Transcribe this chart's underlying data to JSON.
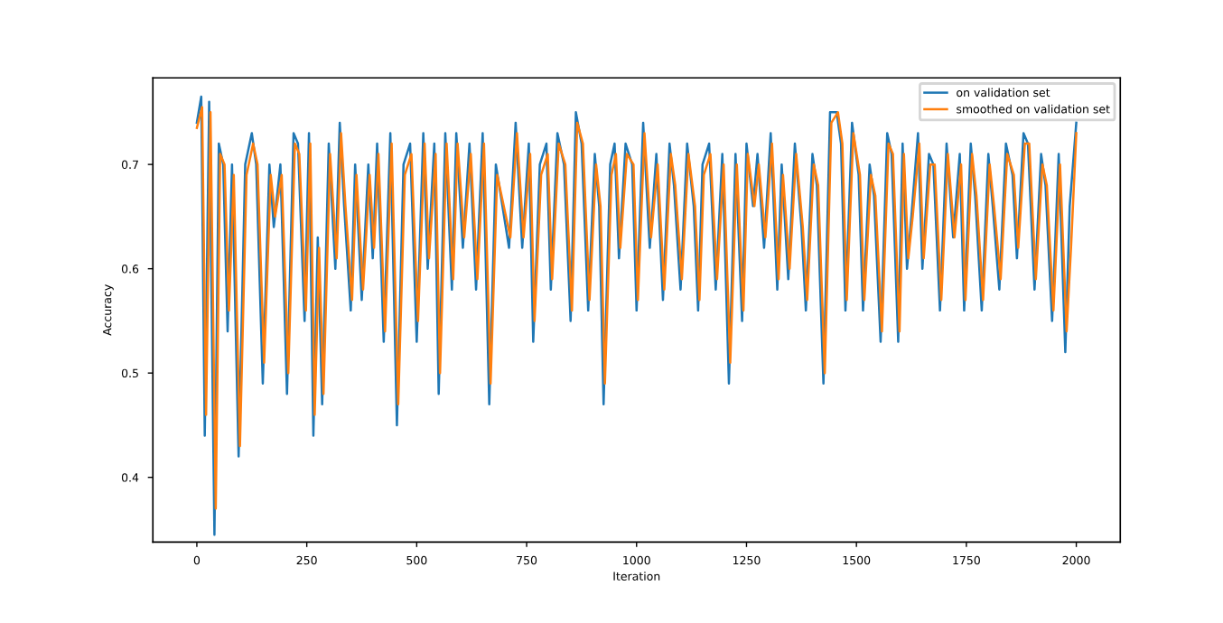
{
  "chart_data": {
    "type": "line",
    "xlabel": "Iteration",
    "ylabel": "Accuracy",
    "xlim": [
      -100,
      2100
    ],
    "ylim": [
      0.338,
      0.783
    ],
    "xticks": [
      0,
      250,
      500,
      750,
      1000,
      1250,
      1500,
      1750,
      2000
    ],
    "yticks": [
      0.4,
      0.5,
      0.6,
      0.7
    ],
    "legend": "top right",
    "grid": false,
    "line_style": "solid",
    "marker": "none",
    "series": [
      {
        "name": "on validation set",
        "color": "#1f77b4",
        "x": [
          0,
          10,
          18,
          28,
          40,
          50,
          60,
          70,
          80,
          95,
          110,
          125,
          135,
          150,
          165,
          175,
          190,
          205,
          220,
          230,
          245,
          255,
          265,
          275,
          285,
          300,
          315,
          325,
          335,
          350,
          360,
          375,
          390,
          400,
          410,
          425,
          440,
          455,
          470,
          485,
          500,
          515,
          525,
          540,
          550,
          565,
          580,
          590,
          605,
          620,
          635,
          650,
          665,
          680,
          695,
          710,
          725,
          740,
          755,
          765,
          780,
          795,
          805,
          820,
          835,
          850,
          862,
          875,
          890,
          905,
          915,
          925,
          940,
          950,
          960,
          975,
          990,
          1000,
          1015,
          1030,
          1045,
          1060,
          1075,
          1085,
          1100,
          1115,
          1130,
          1140,
          1150,
          1165,
          1180,
          1195,
          1210,
          1225,
          1240,
          1250,
          1265,
          1275,
          1290,
          1305,
          1320,
          1330,
          1345,
          1360,
          1375,
          1385,
          1400,
          1410,
          1425,
          1440,
          1455,
          1465,
          1475,
          1490,
          1505,
          1515,
          1530,
          1540,
          1555,
          1570,
          1580,
          1595,
          1605,
          1615,
          1625,
          1640,
          1650,
          1665,
          1675,
          1690,
          1705,
          1720,
          1735,
          1745,
          1760,
          1770,
          1785,
          1800,
          1810,
          1825,
          1840,
          1855,
          1865,
          1880,
          1890,
          1905,
          1920,
          1930,
          1945,
          1960,
          1975,
          1985,
          2000
        ],
        "values": [
          0.74,
          0.765,
          0.44,
          0.76,
          0.345,
          0.72,
          0.7,
          0.54,
          0.7,
          0.42,
          0.7,
          0.73,
          0.7,
          0.49,
          0.7,
          0.64,
          0.7,
          0.48,
          0.73,
          0.72,
          0.55,
          0.73,
          0.44,
          0.63,
          0.47,
          0.72,
          0.6,
          0.74,
          0.66,
          0.56,
          0.7,
          0.57,
          0.7,
          0.61,
          0.72,
          0.53,
          0.73,
          0.45,
          0.7,
          0.72,
          0.53,
          0.73,
          0.6,
          0.72,
          0.48,
          0.73,
          0.58,
          0.73,
          0.62,
          0.72,
          0.58,
          0.73,
          0.47,
          0.7,
          0.66,
          0.62,
          0.74,
          0.62,
          0.72,
          0.53,
          0.7,
          0.72,
          0.58,
          0.73,
          0.7,
          0.55,
          0.75,
          0.72,
          0.56,
          0.71,
          0.66,
          0.47,
          0.7,
          0.72,
          0.61,
          0.72,
          0.7,
          0.56,
          0.74,
          0.62,
          0.71,
          0.57,
          0.72,
          0.68,
          0.58,
          0.72,
          0.66,
          0.56,
          0.7,
          0.72,
          0.58,
          0.71,
          0.49,
          0.71,
          0.55,
          0.72,
          0.66,
          0.71,
          0.62,
          0.73,
          0.58,
          0.7,
          0.59,
          0.72,
          0.64,
          0.56,
          0.71,
          0.68,
          0.49,
          0.75,
          0.75,
          0.72,
          0.56,
          0.74,
          0.69,
          0.56,
          0.7,
          0.67,
          0.53,
          0.73,
          0.71,
          0.53,
          0.72,
          0.6,
          0.65,
          0.73,
          0.6,
          0.71,
          0.7,
          0.56,
          0.72,
          0.63,
          0.71,
          0.56,
          0.72,
          0.67,
          0.56,
          0.71,
          0.66,
          0.58,
          0.72,
          0.69,
          0.61,
          0.73,
          0.72,
          0.58,
          0.71,
          0.68,
          0.55,
          0.71,
          0.52,
          0.66,
          0.74
        ]
      },
      {
        "name": "smoothed on validation set",
        "color": "#ff7f0e",
        "x": [
          0,
          12,
          21,
          31,
          43,
          53,
          63,
          73,
          84,
          98,
          113,
          128,
          138,
          153,
          168,
          178,
          193,
          208,
          223,
          233,
          248,
          258,
          268,
          278,
          288,
          303,
          318,
          328,
          338,
          353,
          363,
          378,
          393,
          403,
          413,
          428,
          443,
          458,
          473,
          488,
          503,
          518,
          528,
          543,
          553,
          568,
          583,
          593,
          608,
          623,
          638,
          653,
          668,
          683,
          698,
          713,
          728,
          743,
          758,
          768,
          783,
          798,
          808,
          823,
          838,
          853,
          865,
          878,
          893,
          908,
          918,
          928,
          943,
          953,
          963,
          978,
          993,
          1003,
          1018,
          1033,
          1048,
          1063,
          1078,
          1088,
          1103,
          1118,
          1133,
          1143,
          1153,
          1168,
          1183,
          1198,
          1213,
          1228,
          1243,
          1253,
          1268,
          1278,
          1293,
          1308,
          1323,
          1333,
          1348,
          1363,
          1378,
          1388,
          1403,
          1413,
          1428,
          1443,
          1458,
          1468,
          1478,
          1493,
          1508,
          1518,
          1533,
          1543,
          1558,
          1573,
          1583,
          1598,
          1608,
          1618,
          1628,
          1643,
          1653,
          1668,
          1678,
          1693,
          1708,
          1723,
          1738,
          1748,
          1763,
          1773,
          1788,
          1803,
          1813,
          1828,
          1843,
          1858,
          1868,
          1883,
          1893,
          1908,
          1923,
          1933,
          1948,
          1963,
          1978,
          1988,
          2000
        ],
        "values": [
          0.735,
          0.755,
          0.46,
          0.75,
          0.37,
          0.71,
          0.7,
          0.56,
          0.69,
          0.43,
          0.69,
          0.72,
          0.7,
          0.51,
          0.69,
          0.65,
          0.69,
          0.5,
          0.72,
          0.71,
          0.56,
          0.72,
          0.46,
          0.62,
          0.48,
          0.71,
          0.61,
          0.73,
          0.66,
          0.57,
          0.69,
          0.58,
          0.69,
          0.62,
          0.71,
          0.54,
          0.72,
          0.47,
          0.69,
          0.71,
          0.55,
          0.72,
          0.61,
          0.71,
          0.5,
          0.72,
          0.59,
          0.72,
          0.63,
          0.71,
          0.59,
          0.72,
          0.49,
          0.69,
          0.66,
          0.63,
          0.73,
          0.63,
          0.71,
          0.55,
          0.69,
          0.71,
          0.59,
          0.72,
          0.7,
          0.56,
          0.74,
          0.72,
          0.57,
          0.7,
          0.66,
          0.49,
          0.69,
          0.71,
          0.62,
          0.71,
          0.7,
          0.57,
          0.73,
          0.63,
          0.7,
          0.58,
          0.71,
          0.68,
          0.59,
          0.71,
          0.66,
          0.57,
          0.69,
          0.71,
          0.59,
          0.7,
          0.51,
          0.7,
          0.56,
          0.71,
          0.66,
          0.7,
          0.63,
          0.72,
          0.59,
          0.69,
          0.6,
          0.71,
          0.64,
          0.57,
          0.7,
          0.68,
          0.5,
          0.74,
          0.75,
          0.72,
          0.57,
          0.73,
          0.69,
          0.57,
          0.69,
          0.67,
          0.54,
          0.72,
          0.71,
          0.54,
          0.71,
          0.61,
          0.65,
          0.72,
          0.61,
          0.7,
          0.7,
          0.57,
          0.71,
          0.63,
          0.7,
          0.57,
          0.71,
          0.67,
          0.57,
          0.7,
          0.66,
          0.59,
          0.71,
          0.69,
          0.62,
          0.72,
          0.72,
          0.59,
          0.7,
          0.68,
          0.56,
          0.7,
          0.54,
          0.62,
          0.73
        ]
      }
    ]
  }
}
